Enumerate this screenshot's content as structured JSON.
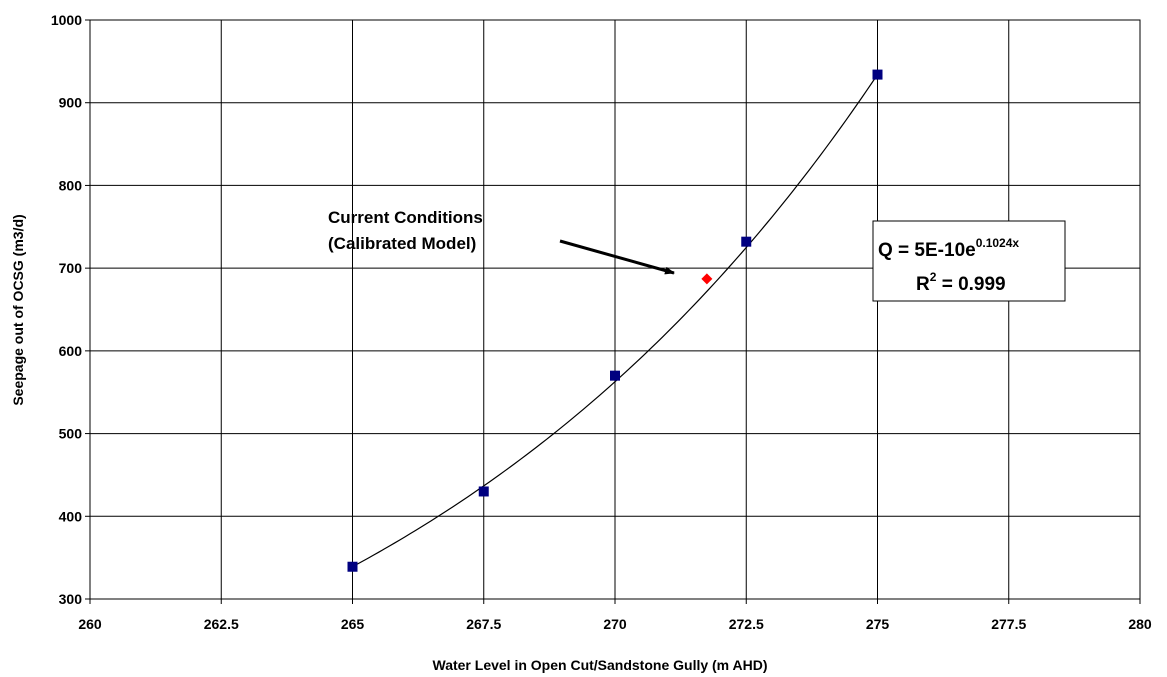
{
  "chart_data": {
    "type": "scatter",
    "title": "",
    "xlabel": "Water Level in Open Cut/Sandstone Gully (m AHD)",
    "ylabel": "Seepage out of OCSG (m3/d)",
    "xlim": [
      260,
      280
    ],
    "ylim": [
      300,
      1000
    ],
    "x_ticks": [
      "260",
      "262.5",
      "265",
      "267.5",
      "270",
      "272.5",
      "275",
      "277.5",
      "280"
    ],
    "y_ticks": [
      "300",
      "400",
      "500",
      "600",
      "700",
      "800",
      "900",
      "1000"
    ],
    "grid": true,
    "series": [
      {
        "marker": "square",
        "color": "#000080",
        "points": [
          {
            "x": 265,
            "y": 339
          },
          {
            "x": 267.5,
            "y": 430
          },
          {
            "x": 270,
            "y": 570
          },
          {
            "x": 272.5,
            "y": 732
          },
          {
            "x": 275,
            "y": 934
          }
        ]
      },
      {
        "marker": "diamond",
        "color": "#ff0000",
        "points": [
          {
            "x": 271.75,
            "y": 687
          }
        ]
      }
    ],
    "trendline": {
      "type": "exponential",
      "color": "#000000",
      "x_range": [
        265,
        275
      ]
    },
    "annotations": {
      "current_conditions_line1": "Current Conditions",
      "current_conditions_line2": "(Calibrated Model)",
      "equation_main": "Q = 5E-10e",
      "equation_exponent": "0.1024x",
      "r2_label": "R",
      "r2_sup": "2",
      "r2_value": " = 0.999"
    }
  }
}
